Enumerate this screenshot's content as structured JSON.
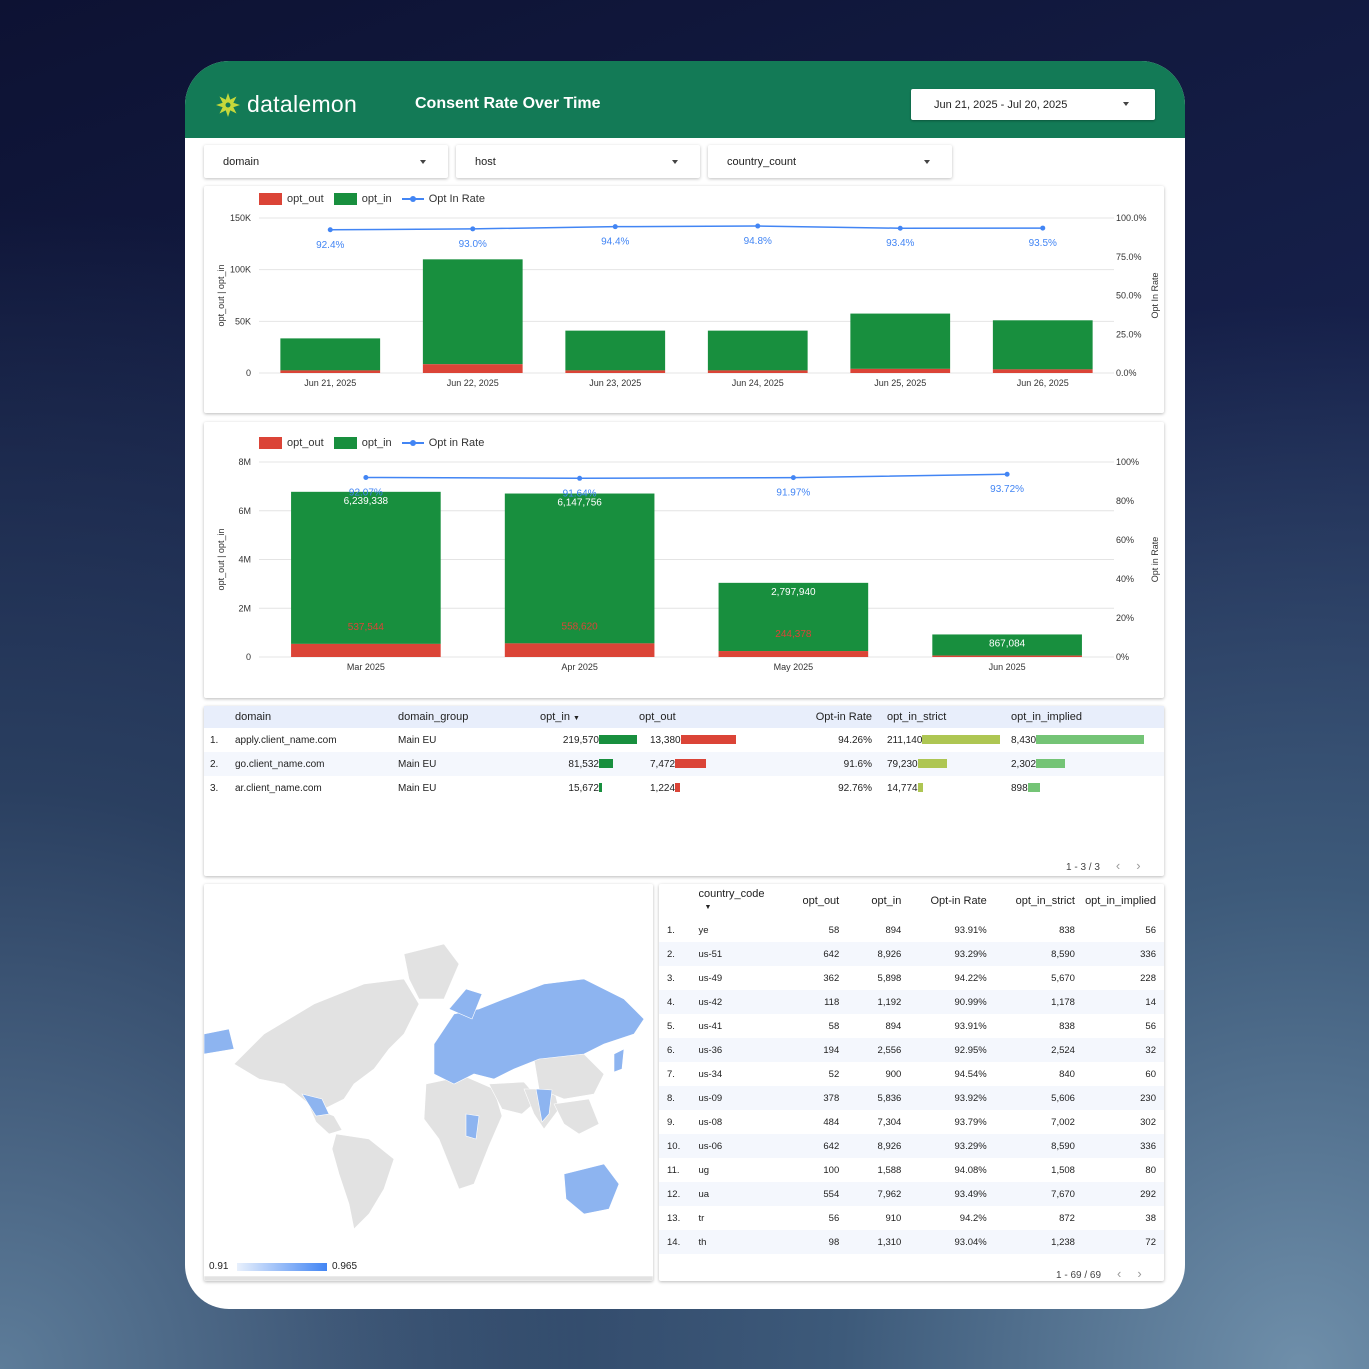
{
  "header": {
    "logo_text": "datalemon",
    "title": "Consent Rate Over Time",
    "date_range": "Jun 21, 2025 - Jul 20, 2025"
  },
  "colors": {
    "header": "#137a56",
    "opt_out": "#db4437",
    "opt_in": "#188f3e",
    "rate": "#4285f4",
    "strict_bar": "#aec653",
    "implied_bar": "#74c476"
  },
  "filters": [
    {
      "label": "domain"
    },
    {
      "label": "host"
    },
    {
      "label": "country_count"
    }
  ],
  "chart_data": [
    {
      "type": "bar",
      "stacked": true,
      "legend": [
        "opt_out",
        "opt_in",
        "Opt In Rate"
      ],
      "categories": [
        "Jun 21, 2025",
        "Jun 22, 2025",
        "Jun 23, 2025",
        "Jun 24, 2025",
        "Jun 25, 2025",
        "Jun 26, 2025"
      ],
      "series": [
        {
          "name": "opt_out",
          "values": [
            2500,
            8500,
            2500,
            2500,
            4000,
            3500
          ]
        },
        {
          "name": "opt_in",
          "values": [
            31000,
            101500,
            38500,
            38500,
            53500,
            47500
          ]
        },
        {
          "name": "Opt In Rate",
          "axis": "right",
          "values": [
            92.4,
            93.0,
            94.4,
            94.8,
            93.4,
            93.5
          ],
          "labels": [
            "92.4%",
            "93.0%",
            "94.4%",
            "94.8%",
            "93.4%",
            "93.5%"
          ]
        }
      ],
      "ylabel": "opt_out | opt_in",
      "y2label": "Opt In Rate",
      "yticks": [
        "0",
        "50K",
        "100K",
        "150K"
      ],
      "y2ticks": [
        "0.0%",
        "25.0%",
        "50.0%",
        "75.0%",
        "100.0%"
      ],
      "ylim": [
        0,
        150000
      ],
      "y2lim": [
        0,
        100
      ]
    },
    {
      "type": "bar",
      "stacked": true,
      "legend": [
        "opt_out",
        "opt_in",
        "Opt in Rate"
      ],
      "categories": [
        "Mar 2025",
        "Apr 2025",
        "May 2025",
        "Jun 2025"
      ],
      "series": [
        {
          "name": "opt_out",
          "values": [
            537544,
            558620,
            244378,
            58000
          ],
          "labels": [
            "537,544",
            "558,620",
            "244,378",
            ""
          ]
        },
        {
          "name": "opt_in",
          "values": [
            6239338,
            6147756,
            2797940,
            867084
          ],
          "labels": [
            "6,239,338",
            "6,147,756",
            "2,797,940",
            "867,084"
          ]
        },
        {
          "name": "Opt in Rate",
          "axis": "right",
          "values": [
            92.07,
            91.64,
            91.97,
            93.72
          ],
          "labels": [
            "92.07%",
            "91.64%",
            "91.97%",
            "93.72%"
          ]
        }
      ],
      "ylabel": "opt_out | opt_in",
      "y2label": "Opt in Rate",
      "yticks": [
        "0",
        "2M",
        "4M",
        "6M",
        "8M"
      ],
      "y2ticks": [
        "0%",
        "20%",
        "40%",
        "60%",
        "80%",
        "100%"
      ],
      "ylim": [
        0,
        8000000
      ],
      "y2lim": [
        0,
        100
      ]
    }
  ],
  "domain_table": {
    "headers": [
      "domain",
      "domain_group",
      "opt_in",
      "opt_out",
      "Opt-in Rate",
      "opt_in_strict",
      "opt_in_implied"
    ],
    "rows": [
      {
        "n": "1.",
        "domain": "apply.client_name.com",
        "group": "Main EU",
        "opt_in": "219,570",
        "opt_in_v": 219570,
        "opt_out": "13,380",
        "opt_out_v": 13380,
        "rate": "94.26%",
        "strict": "211,140",
        "strict_v": 211140,
        "implied": "8,430",
        "implied_v": 8430
      },
      {
        "n": "2.",
        "domain": "go.client_name.com",
        "group": "Main EU",
        "opt_in": "81,532",
        "opt_in_v": 81532,
        "opt_out": "7,472",
        "opt_out_v": 7472,
        "rate": "91.6%",
        "strict": "79,230",
        "strict_v": 79230,
        "implied": "2,302",
        "implied_v": 2302
      },
      {
        "n": "3.",
        "domain": "ar.client_name.com",
        "group": "Main EU",
        "opt_in": "15,672",
        "opt_in_v": 15672,
        "opt_out": "1,224",
        "opt_out_v": 1224,
        "rate": "92.76%",
        "strict": "14,774",
        "strict_v": 14774,
        "implied": "898",
        "implied_v": 898
      }
    ],
    "pagination": "1 - 3 / 3"
  },
  "map": {
    "legend_min": "0.91",
    "legend_max": "0.965"
  },
  "country_table": {
    "headers": [
      "country_code",
      "opt_out",
      "opt_in",
      "Opt-in Rate",
      "opt_in_strict",
      "opt_in_implied"
    ],
    "rows": [
      [
        "1.",
        "ye",
        "58",
        "894",
        "93.91%",
        "838",
        "56"
      ],
      [
        "2.",
        "us-51",
        "642",
        "8,926",
        "93.29%",
        "8,590",
        "336"
      ],
      [
        "3.",
        "us-49",
        "362",
        "5,898",
        "94.22%",
        "5,670",
        "228"
      ],
      [
        "4.",
        "us-42",
        "118",
        "1,192",
        "90.99%",
        "1,178",
        "14"
      ],
      [
        "5.",
        "us-41",
        "58",
        "894",
        "93.91%",
        "838",
        "56"
      ],
      [
        "6.",
        "us-36",
        "194",
        "2,556",
        "92.95%",
        "2,524",
        "32"
      ],
      [
        "7.",
        "us-34",
        "52",
        "900",
        "94.54%",
        "840",
        "60"
      ],
      [
        "8.",
        "us-09",
        "378",
        "5,836",
        "93.92%",
        "5,606",
        "230"
      ],
      [
        "9.",
        "us-08",
        "484",
        "7,304",
        "93.79%",
        "7,002",
        "302"
      ],
      [
        "10.",
        "us-06",
        "642",
        "8,926",
        "93.29%",
        "8,590",
        "336"
      ],
      [
        "11.",
        "ug",
        "100",
        "1,588",
        "94.08%",
        "1,508",
        "80"
      ],
      [
        "12.",
        "ua",
        "554",
        "7,962",
        "93.49%",
        "7,670",
        "292"
      ],
      [
        "13.",
        "tr",
        "56",
        "910",
        "94.2%",
        "872",
        "38"
      ],
      [
        "14.",
        "th",
        "98",
        "1,310",
        "93.04%",
        "1,238",
        "72"
      ]
    ],
    "pagination": "1 - 69 / 69"
  }
}
